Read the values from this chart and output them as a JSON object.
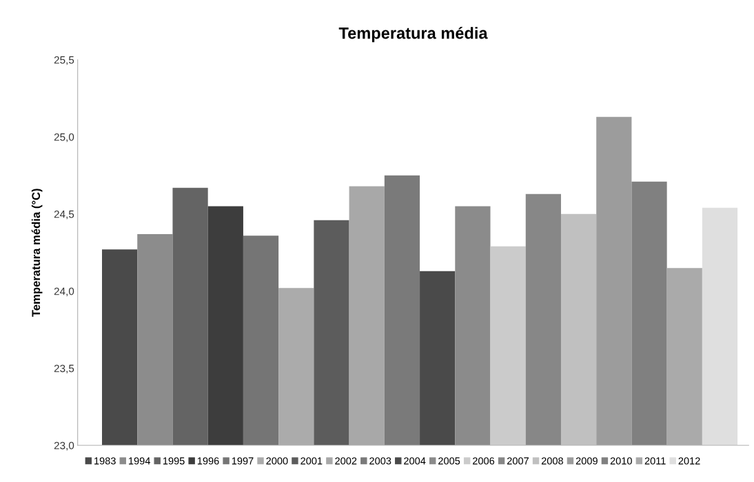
{
  "chart_data": {
    "type": "bar",
    "title": "Temperatura média",
    "ylabel": "Temperatura média (°C)",
    "categories": [
      null
    ],
    "series": [
      {
        "name": "1983",
        "color": "#4a4a4a",
        "values": [
          24.27
        ]
      },
      {
        "name": "1994",
        "color": "#8c8c8c",
        "values": [
          24.37
        ]
      },
      {
        "name": "1995",
        "color": "#646464",
        "values": [
          24.67
        ]
      },
      {
        "name": "1996",
        "color": "#3d3d3d",
        "values": [
          24.55
        ]
      },
      {
        "name": "1997",
        "color": "#757575",
        "values": [
          24.36
        ]
      },
      {
        "name": "2000",
        "color": "#ababab",
        "values": [
          24.02
        ]
      },
      {
        "name": "2001",
        "color": "#5c5c5c",
        "values": [
          24.46
        ]
      },
      {
        "name": "2002",
        "color": "#a8a8a8",
        "values": [
          24.68
        ]
      },
      {
        "name": "2003",
        "color": "#7a7a7a",
        "values": [
          24.75
        ]
      },
      {
        "name": "2004",
        "color": "#4a4a4a",
        "values": [
          24.13
        ]
      },
      {
        "name": "2005",
        "color": "#8b8b8b",
        "values": [
          24.55
        ]
      },
      {
        "name": "2006",
        "color": "#cbcbcb",
        "values": [
          24.29
        ]
      },
      {
        "name": "2007",
        "color": "#878787",
        "values": [
          24.63
        ]
      },
      {
        "name": "2008",
        "color": "#c0c0c0",
        "values": [
          24.5
        ]
      },
      {
        "name": "2009",
        "color": "#9c9c9c",
        "values": [
          25.13
        ]
      },
      {
        "name": "2010",
        "color": "#808080",
        "values": [
          24.71
        ]
      },
      {
        "name": "2011",
        "color": "#aaaaaa",
        "values": [
          24.15
        ]
      },
      {
        "name": "2012",
        "color": "#dfdfdf",
        "values": [
          24.54
        ]
      }
    ],
    "ylim": [
      23,
      25.5
    ],
    "yticks": [
      {
        "value": 23,
        "label": "23,0"
      },
      {
        "value": 23.5,
        "label": "23,5"
      },
      {
        "value": 24,
        "label": "24,0"
      },
      {
        "value": 24.5,
        "label": "24,5"
      },
      {
        "value": 25,
        "label": "25,0"
      },
      {
        "value": 25.5,
        "label": "25,5"
      }
    ],
    "grid": false,
    "legend": "bottom"
  }
}
